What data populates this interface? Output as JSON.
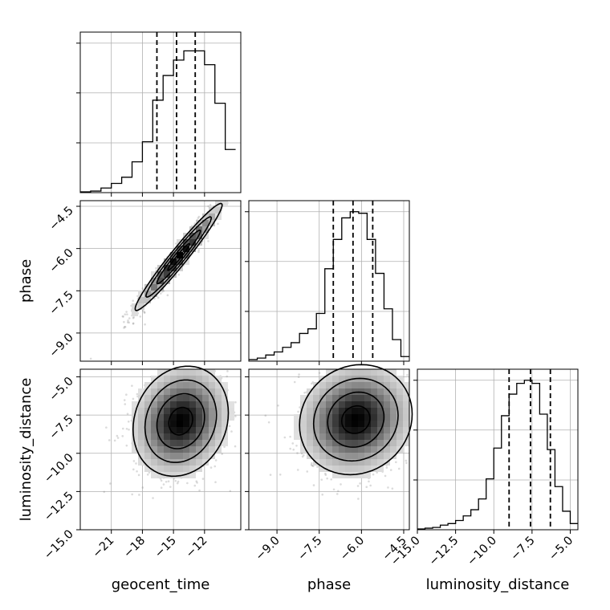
{
  "chart_data": {
    "type": "corner",
    "parameters": [
      "geocent_time",
      "phase",
      "luminosity_distance"
    ],
    "axes": {
      "geocent_time": {
        "label": "geocent_time",
        "range": [
          -24,
          -8.5
        ],
        "ticks": [
          -21,
          -18,
          -15,
          -12
        ],
        "tick_labels": [
          "−21",
          "−18",
          "−15",
          "−12"
        ]
      },
      "phase": {
        "label": "phase",
        "range": [
          -10.0,
          -4.3
        ],
        "ticks": [
          -9.0,
          -7.5,
          -6.0,
          -4.5
        ],
        "tick_labels": [
          "−9.0",
          "−7.5",
          "−6.0",
          "−4.5"
        ]
      },
      "luminosity_distance": {
        "label": "luminosity_distance",
        "range": [
          -15.0,
          -4.5
        ],
        "ticks": [
          -15.0,
          -12.5,
          -10.0,
          -7.5,
          -5.0
        ],
        "tick_labels": [
          "−15.0",
          "−12.5",
          "−10.0",
          "−7.5",
          "−5.0"
        ]
      }
    },
    "histograms": [
      {
        "parameter": "geocent_time",
        "bins_edges": [
          -24,
          -23,
          -22,
          -21,
          -20,
          -19,
          -18,
          -17,
          -16,
          -15,
          -14,
          -13,
          -12,
          -11,
          -10,
          -9
        ],
        "counts": [
          0.005,
          0.01,
          0.03,
          0.06,
          0.1,
          0.2,
          0.33,
          0.6,
          0.76,
          0.86,
          0.92,
          0.92,
          0.83,
          0.58,
          0.28
        ],
        "quantiles": [
          -16.6,
          -14.7,
          -12.9
        ]
      },
      {
        "parameter": "phase",
        "bins_edges": [
          -10.0,
          -9.7,
          -9.4,
          -9.1,
          -8.8,
          -8.5,
          -8.2,
          -7.9,
          -7.6,
          -7.3,
          -7.0,
          -6.7,
          -6.4,
          -6.1,
          -5.8,
          -5.5,
          -5.2,
          -4.9,
          -4.6,
          -4.3
        ],
        "counts": [
          0.01,
          0.02,
          0.04,
          0.06,
          0.09,
          0.12,
          0.18,
          0.21,
          0.31,
          0.6,
          0.79,
          0.93,
          0.97,
          0.96,
          0.79,
          0.57,
          0.34,
          0.14,
          0.03
        ],
        "quantiles": [
          -7.0,
          -6.3,
          -5.6
        ]
      },
      {
        "parameter": "luminosity_distance",
        "bins_edges": [
          -15.0,
          -14.5,
          -14.0,
          -13.5,
          -13.0,
          -12.5,
          -12.0,
          -11.5,
          -11.0,
          -10.5,
          -10.0,
          -9.5,
          -9.0,
          -8.5,
          -8.0,
          -7.5,
          -7.0,
          -6.5,
          -6.0,
          -5.5,
          -5.0,
          -4.5
        ],
        "counts": [
          0.005,
          0.01,
          0.015,
          0.03,
          0.04,
          0.06,
          0.09,
          0.13,
          0.2,
          0.33,
          0.53,
          0.74,
          0.88,
          0.95,
          0.97,
          0.95,
          0.75,
          0.52,
          0.28,
          0.12,
          0.04
        ],
        "quantiles": [
          -9.0,
          -7.6,
          -6.3
        ]
      }
    ],
    "pairs": [
      {
        "x": "geocent_time",
        "y": "phase",
        "center": [
          -14.5,
          -6.3
        ],
        "std": [
          2.1,
          0.95
        ],
        "correlation": 0.97
      },
      {
        "x": "geocent_time",
        "y": "luminosity_distance",
        "center": [
          -14.3,
          -7.9
        ],
        "std": [
          2.3,
          1.8
        ],
        "correlation": 0.15
      },
      {
        "x": "phase",
        "y": "luminosity_distance",
        "center": [
          -6.2,
          -7.8
        ],
        "std": [
          1.0,
          1.8
        ],
        "correlation": 0.1
      }
    ],
    "grid": true
  }
}
